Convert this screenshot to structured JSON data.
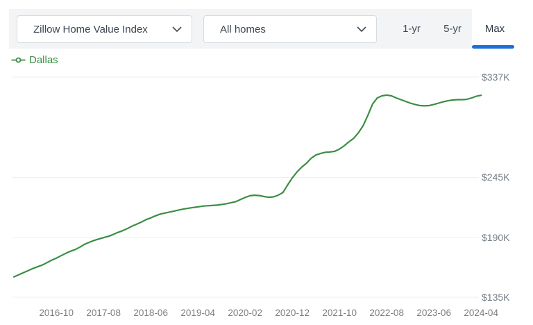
{
  "toolbar": {
    "metric_dropdown": {
      "value": "Zillow Home Value Index"
    },
    "segment_dropdown": {
      "value": "All homes"
    },
    "range_tabs": [
      {
        "label": "1-yr",
        "active": false
      },
      {
        "label": "5-yr",
        "active": false
      },
      {
        "label": "Max",
        "active": true
      }
    ]
  },
  "legend": {
    "series_label": "Dallas",
    "marker": "line-with-dot",
    "color": "#3a8e43"
  },
  "colors": {
    "toolbar_bg": "#f3f4f6",
    "dropdown_border": "#d7dade",
    "active_tab_underline": "#1d6fd8",
    "series_green": "#3a8e43",
    "gridline": "#ebedef",
    "tick_text": "#7d7d7d"
  },
  "chart_data": {
    "type": "line",
    "title": "Zillow Home Value Index — Dallas — All homes — Max range",
    "unit": "USD thousands",
    "grid": "horizontal-only",
    "legend_position": "top-left",
    "y_ticks": [
      {
        "label": "$337K",
        "value": 337
      },
      {
        "label": "$245K",
        "value": 245
      },
      {
        "label": "$190K",
        "value": 190
      },
      {
        "label": "$135K",
        "value": 135
      }
    ],
    "x_tick_labels": [
      "2016-10",
      "2017-08",
      "2018-06",
      "2019-04",
      "2020-02",
      "2020-12",
      "2021-10",
      "2022-08",
      "2023-06",
      "2024-04"
    ],
    "ylim": [
      131,
      341
    ],
    "series": [
      {
        "name": "Dallas",
        "color": "#3a8e43",
        "x": [
          "2016-01",
          "2016-02",
          "2016-03",
          "2016-04",
          "2016-05",
          "2016-06",
          "2016-07",
          "2016-08",
          "2016-09",
          "2016-10",
          "2016-11",
          "2016-12",
          "2017-01",
          "2017-02",
          "2017-03",
          "2017-04",
          "2017-05",
          "2017-06",
          "2017-07",
          "2017-08",
          "2017-09",
          "2017-10",
          "2017-11",
          "2017-12",
          "2018-01",
          "2018-02",
          "2018-03",
          "2018-04",
          "2018-05",
          "2018-06",
          "2018-07",
          "2018-08",
          "2018-09",
          "2018-10",
          "2018-11",
          "2018-12",
          "2019-01",
          "2019-02",
          "2019-03",
          "2019-04",
          "2019-05",
          "2019-06",
          "2019-07",
          "2019-08",
          "2019-09",
          "2019-10",
          "2019-11",
          "2019-12",
          "2020-01",
          "2020-02",
          "2020-03",
          "2020-04",
          "2020-05",
          "2020-06",
          "2020-07",
          "2020-08",
          "2020-09",
          "2020-10",
          "2020-11",
          "2020-12",
          "2021-01",
          "2021-02",
          "2021-03",
          "2021-04",
          "2021-05",
          "2021-06",
          "2021-07",
          "2021-08",
          "2021-09",
          "2021-10",
          "2021-11",
          "2021-12",
          "2022-01",
          "2022-02",
          "2022-03",
          "2022-04",
          "2022-05",
          "2022-06",
          "2022-07",
          "2022-08",
          "2022-09",
          "2022-10",
          "2022-11",
          "2022-12",
          "2023-01",
          "2023-02",
          "2023-03",
          "2023-04",
          "2023-05",
          "2023-06",
          "2023-07",
          "2023-08",
          "2023-09",
          "2023-10",
          "2023-11",
          "2023-12",
          "2024-01",
          "2024-02",
          "2024-03",
          "2024-04"
        ],
        "values": [
          153.7,
          155.6,
          157.5,
          159.4,
          161.3,
          162.9,
          164.5,
          166.7,
          169.0,
          170.9,
          173.1,
          175.3,
          177.2,
          178.8,
          181.0,
          183.6,
          185.4,
          187.1,
          188.4,
          189.7,
          190.9,
          192.5,
          194.4,
          196.0,
          197.9,
          200.1,
          202.0,
          203.9,
          206.2,
          207.8,
          209.7,
          211.3,
          212.2,
          213.2,
          214.1,
          215.1,
          216.0,
          216.7,
          217.3,
          217.9,
          218.6,
          218.9,
          219.2,
          219.5,
          220.1,
          220.8,
          221.7,
          222.7,
          224.6,
          226.5,
          228.1,
          228.6,
          228.3,
          227.4,
          226.7,
          227.1,
          228.6,
          231.0,
          238.0,
          244.5,
          250.0,
          254.4,
          258.0,
          262.5,
          265.5,
          267.0,
          268.0,
          268.3,
          268.9,
          271.0,
          274.0,
          277.6,
          280.8,
          285.9,
          292.3,
          301.8,
          312.2,
          317.9,
          319.8,
          320.5,
          319.8,
          317.9,
          316.3,
          314.7,
          313.1,
          311.9,
          310.9,
          310.6,
          310.9,
          311.9,
          313.1,
          314.4,
          315.3,
          316.0,
          316.3,
          316.3,
          316.6,
          317.9,
          319.4,
          320.3
        ]
      }
    ]
  }
}
